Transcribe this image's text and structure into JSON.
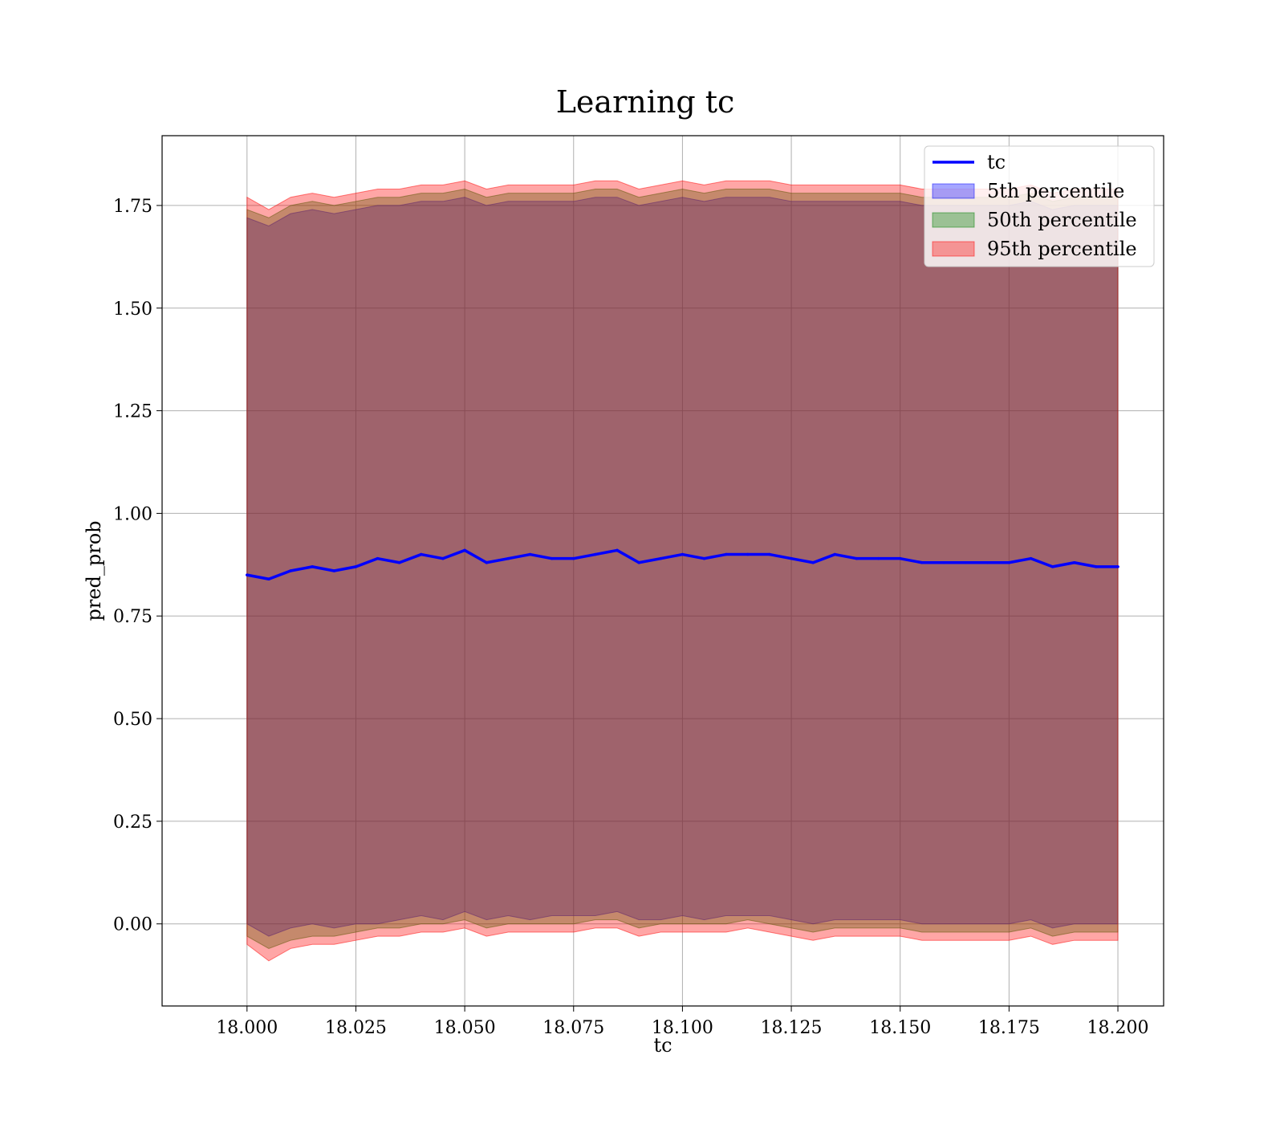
{
  "colors": {
    "line": "#0000ff",
    "band_5th": "#0000ff",
    "band_50th": "#008000",
    "band_95th": "#ff0000",
    "grid": "#b0b0b0"
  },
  "chart_data": {
    "type": "line",
    "title": "Learning tc",
    "xlabel": "tc",
    "ylabel": "pred_prob",
    "xlim": [
      17.9805,
      18.2105
    ],
    "ylim": [
      -0.2,
      1.92
    ],
    "xticks": [
      18.0,
      18.025,
      18.05,
      18.075,
      18.1,
      18.125,
      18.15,
      18.175,
      18.2
    ],
    "xtick_labels": [
      "18.000",
      "18.025",
      "18.050",
      "18.075",
      "18.100",
      "18.125",
      "18.150",
      "18.175",
      "18.200"
    ],
    "yticks": [
      0.0,
      0.25,
      0.5,
      0.75,
      1.0,
      1.25,
      1.5,
      1.75
    ],
    "ytick_labels": [
      "0.00",
      "0.25",
      "0.50",
      "0.75",
      "1.00",
      "1.25",
      "1.50",
      "1.75"
    ],
    "grid": true,
    "legend": {
      "placement": "top-right",
      "entries": [
        {
          "label": "tc",
          "kind": "line",
          "color": "#0000ff"
        },
        {
          "label": "5th percentile",
          "kind": "fill",
          "color": "#0000ff"
        },
        {
          "label": "50th percentile",
          "kind": "fill",
          "color": "#008000"
        },
        {
          "label": "95th percentile",
          "kind": "fill",
          "color": "#ff0000"
        }
      ]
    },
    "x": [
      18.0,
      18.005,
      18.01,
      18.015,
      18.02,
      18.025,
      18.03,
      18.035,
      18.04,
      18.045,
      18.05,
      18.055,
      18.06,
      18.065,
      18.07,
      18.075,
      18.08,
      18.085,
      18.09,
      18.095,
      18.1,
      18.105,
      18.11,
      18.115,
      18.12,
      18.125,
      18.13,
      18.135,
      18.14,
      18.145,
      18.15,
      18.155,
      18.16,
      18.165,
      18.17,
      18.175,
      18.18,
      18.185,
      18.19,
      18.195,
      18.2
    ],
    "series": [
      {
        "name": "tc",
        "kind": "line",
        "values": [
          0.85,
          0.84,
          0.86,
          0.87,
          0.86,
          0.87,
          0.89,
          0.88,
          0.9,
          0.89,
          0.91,
          0.88,
          0.89,
          0.9,
          0.89,
          0.89,
          0.9,
          0.91,
          0.88,
          0.89,
          0.9,
          0.89,
          0.9,
          0.9,
          0.9,
          0.89,
          0.88,
          0.9,
          0.89,
          0.89,
          0.89,
          0.88,
          0.88,
          0.88,
          0.88,
          0.88,
          0.89,
          0.87,
          0.88,
          0.87,
          0.87
        ]
      },
      {
        "name": "5th percentile",
        "kind": "band",
        "lower": [
          0.0,
          -0.03,
          -0.01,
          0.0,
          -0.01,
          0.0,
          0.0,
          0.01,
          0.02,
          0.01,
          0.03,
          0.01,
          0.02,
          0.01,
          0.02,
          0.02,
          0.02,
          0.03,
          0.01,
          0.01,
          0.02,
          0.01,
          0.02,
          0.02,
          0.02,
          0.01,
          0.0,
          0.01,
          0.01,
          0.01,
          0.01,
          0.0,
          0.0,
          0.0,
          0.0,
          0.0,
          0.01,
          -0.01,
          0.0,
          0.0,
          0.0
        ],
        "upper": [
          1.72,
          1.7,
          1.73,
          1.74,
          1.73,
          1.74,
          1.75,
          1.75,
          1.76,
          1.76,
          1.77,
          1.75,
          1.76,
          1.76,
          1.76,
          1.76,
          1.77,
          1.77,
          1.75,
          1.76,
          1.77,
          1.76,
          1.77,
          1.77,
          1.77,
          1.76,
          1.76,
          1.76,
          1.76,
          1.76,
          1.76,
          1.75,
          1.75,
          1.75,
          1.75,
          1.75,
          1.76,
          1.74,
          1.75,
          1.75,
          1.75
        ]
      },
      {
        "name": "50th percentile",
        "kind": "band",
        "lower": [
          -0.03,
          -0.06,
          -0.04,
          -0.03,
          -0.03,
          -0.02,
          -0.01,
          -0.01,
          0.0,
          0.0,
          0.01,
          -0.01,
          0.0,
          0.0,
          0.0,
          0.0,
          0.01,
          0.01,
          -0.01,
          0.0,
          0.0,
          0.0,
          0.0,
          0.01,
          0.0,
          -0.01,
          -0.02,
          -0.01,
          -0.01,
          -0.01,
          -0.01,
          -0.02,
          -0.02,
          -0.02,
          -0.02,
          -0.02,
          -0.01,
          -0.03,
          -0.02,
          -0.02,
          -0.02
        ],
        "upper": [
          1.74,
          1.72,
          1.75,
          1.76,
          1.75,
          1.76,
          1.77,
          1.77,
          1.78,
          1.78,
          1.79,
          1.77,
          1.78,
          1.78,
          1.78,
          1.78,
          1.79,
          1.79,
          1.77,
          1.78,
          1.79,
          1.78,
          1.79,
          1.79,
          1.79,
          1.78,
          1.78,
          1.78,
          1.78,
          1.78,
          1.78,
          1.77,
          1.77,
          1.77,
          1.77,
          1.77,
          1.78,
          1.76,
          1.77,
          1.77,
          1.77
        ]
      },
      {
        "name": "95th percentile",
        "kind": "band",
        "lower": [
          -0.05,
          -0.09,
          -0.06,
          -0.05,
          -0.05,
          -0.04,
          -0.03,
          -0.03,
          -0.02,
          -0.02,
          -0.01,
          -0.03,
          -0.02,
          -0.02,
          -0.02,
          -0.02,
          -0.01,
          -0.01,
          -0.03,
          -0.02,
          -0.02,
          -0.02,
          -0.02,
          -0.01,
          -0.02,
          -0.03,
          -0.04,
          -0.03,
          -0.03,
          -0.03,
          -0.03,
          -0.04,
          -0.04,
          -0.04,
          -0.04,
          -0.04,
          -0.03,
          -0.05,
          -0.04,
          -0.04,
          -0.04
        ],
        "upper": [
          1.77,
          1.74,
          1.77,
          1.78,
          1.77,
          1.78,
          1.79,
          1.79,
          1.8,
          1.8,
          1.81,
          1.79,
          1.8,
          1.8,
          1.8,
          1.8,
          1.81,
          1.81,
          1.79,
          1.8,
          1.81,
          1.8,
          1.81,
          1.81,
          1.81,
          1.8,
          1.8,
          1.8,
          1.8,
          1.8,
          1.8,
          1.79,
          1.79,
          1.79,
          1.79,
          1.79,
          1.8,
          1.78,
          1.79,
          1.79,
          1.79
        ]
      }
    ]
  }
}
